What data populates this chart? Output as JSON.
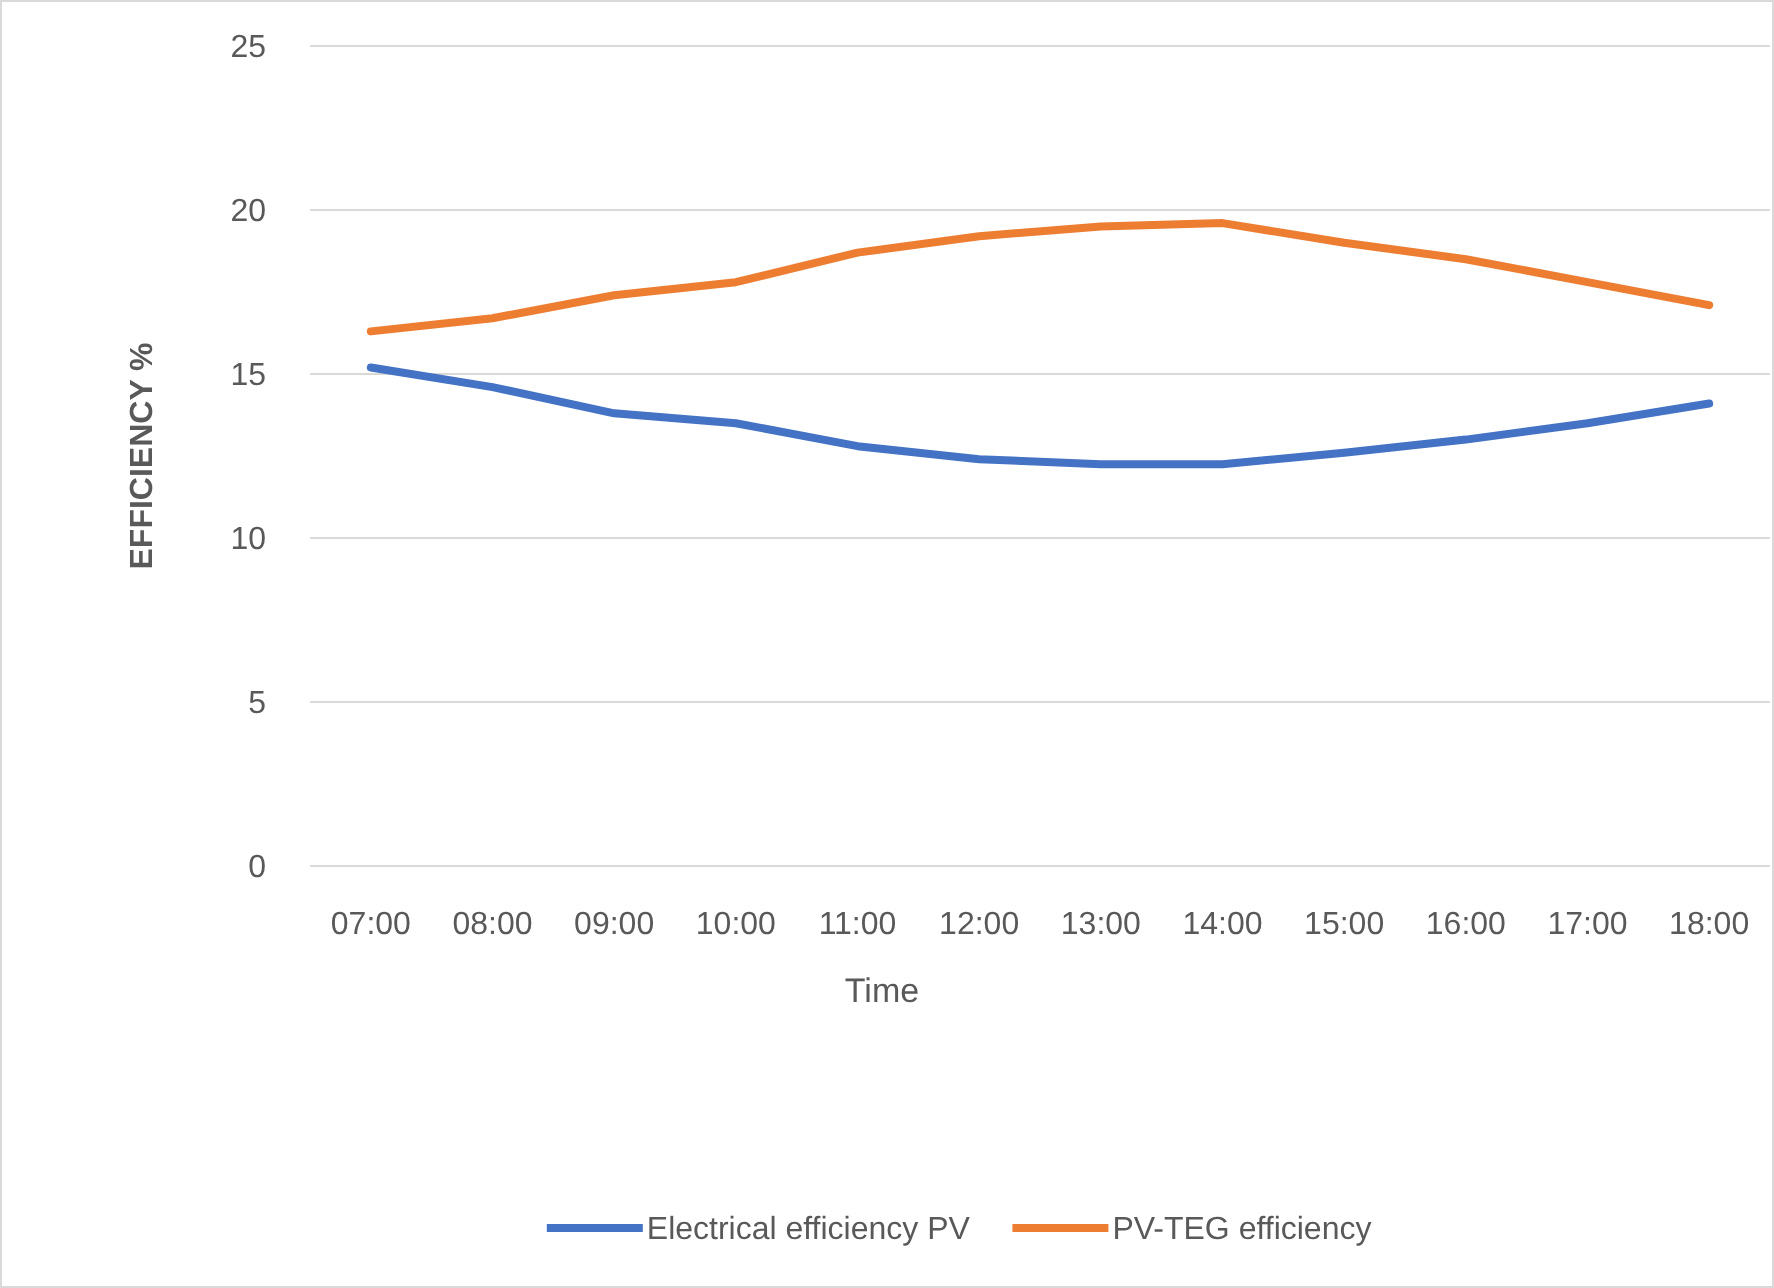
{
  "chart_data": {
    "type": "line",
    "xlabel": "Time",
    "ylabel": "EFFICIENCY %",
    "categories": [
      "07:00",
      "08:00",
      "09:00",
      "10:00",
      "11:00",
      "12:00",
      "13:00",
      "14:00",
      "15:00",
      "16:00",
      "17:00",
      "18:00"
    ],
    "series": [
      {
        "name": "Electrical efficiency PV",
        "color": "#4472c4",
        "values": [
          15.2,
          14.6,
          13.8,
          13.5,
          12.8,
          12.4,
          12.25,
          12.25,
          12.6,
          13.0,
          13.5,
          14.1
        ]
      },
      {
        "name": "PV-TEG efficiency",
        "color": "#ed7d31",
        "values": [
          16.3,
          16.7,
          17.4,
          17.8,
          18.7,
          19.2,
          19.5,
          19.6,
          19.0,
          18.5,
          17.8,
          17.1
        ]
      }
    ],
    "ylim": [
      0,
      25
    ],
    "yticks": [
      0,
      5,
      10,
      15,
      20,
      25
    ],
    "grid": "y",
    "legend": "bottom",
    "marker": "none",
    "line_style": "solid"
  }
}
